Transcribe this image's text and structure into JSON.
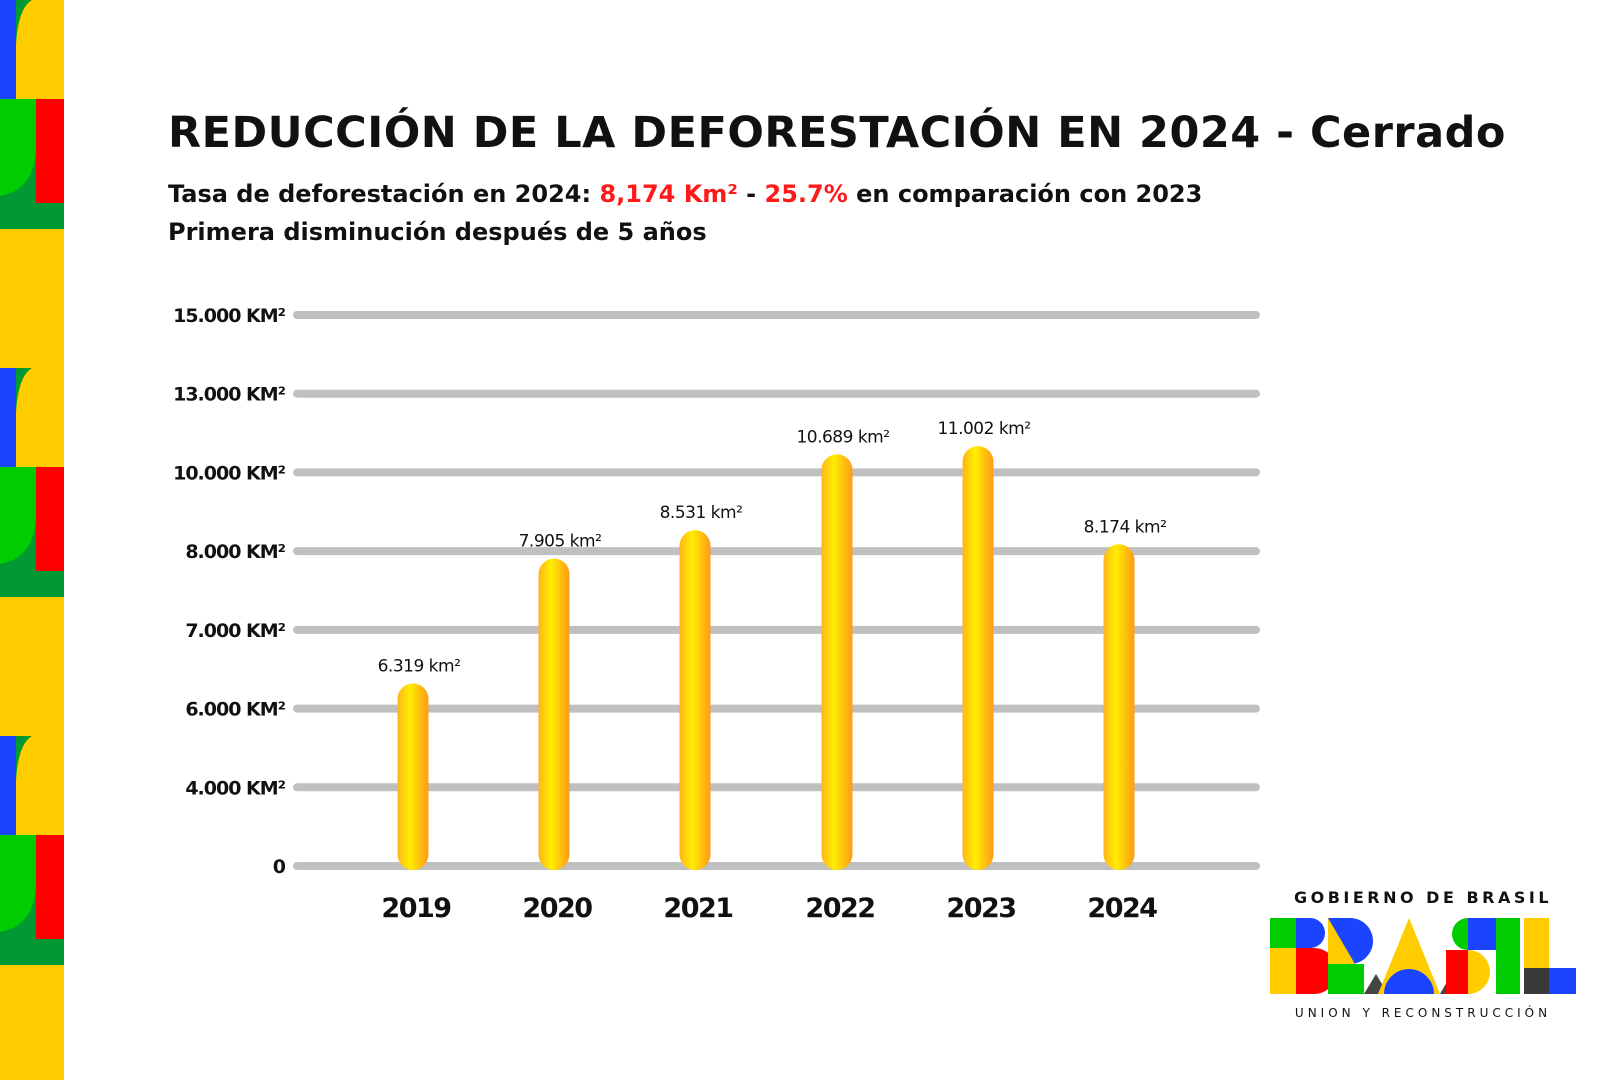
{
  "title": "REDUCCIÓN DE LA DEFORESTACIÓN EN 2024 - Cerrado",
  "subtitle": {
    "line1_prefix": "Tasa de deforestación en 2024: ",
    "line1_value": "8,174 Km²",
    "line1_sep": " - ",
    "line1_pct": "25.7%",
    "line1_suffix": " en comparación con 2023",
    "line2": "Primera disminución después de 5 años"
  },
  "colors": {
    "highlight": "#ff1a1a",
    "bar_light": "#ffee00",
    "bar_dark": "#ff9a1a",
    "grid": "#c0c0c0"
  },
  "chart_data": {
    "type": "bar",
    "categories": [
      "2019",
      "2020",
      "2021",
      "2022",
      "2023",
      "2024"
    ],
    "values": [
      6319,
      7905,
      8531,
      10689,
      11002,
      8174
    ],
    "data_labels": [
      "6.319 km²",
      "7.905 km²",
      "8.531 km²",
      "10.689 km²",
      "11.002 km²",
      "8.174 km²"
    ],
    "yticks": [
      0,
      4000,
      6000,
      7000,
      8000,
      10000,
      13000,
      15000
    ],
    "ytick_labels": [
      "0",
      "4.000 KM²",
      "6.000 KM²",
      "7.000 KM²",
      "8.000 KM²",
      "10.000 KM²",
      "13.000 KM²",
      "15.000 KM²"
    ],
    "ylim": [
      0,
      15000
    ],
    "grid": true,
    "xlabel": "",
    "ylabel": ""
  },
  "logo": {
    "top": "GOBIERNO DE BRASIL",
    "word": "BRASIL",
    "bottom": "UNION Y RECONSTRUCCIÓN"
  }
}
